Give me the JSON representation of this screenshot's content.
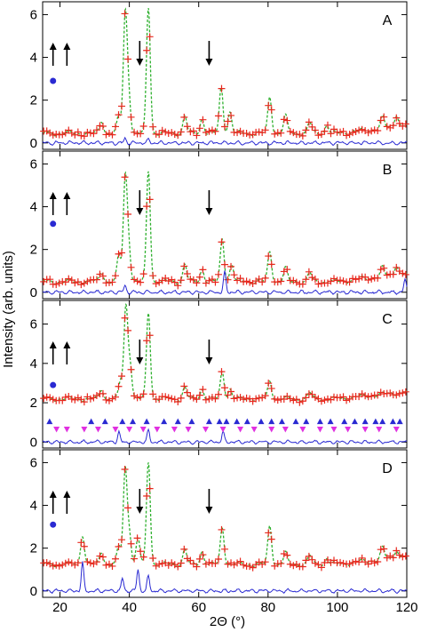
{
  "chart_data": {
    "type": "line",
    "xlabel": "2Θ (°)",
    "ylabel": "Intensity (arb. units)",
    "xlim": [
      15,
      120
    ],
    "x_ticks": [
      "20",
      "40",
      "60",
      "80",
      "100",
      "120"
    ],
    "y_ticks": [
      "0",
      "2",
      "4",
      "6"
    ],
    "legend": "none",
    "colors": {
      "observed": "#e8281e",
      "calculated": "#2fb02f",
      "difference": "#2a2ad2",
      "blue_markers": "#2a2ad2",
      "magenta_markers": "#e030e0",
      "arrows": "#000000"
    },
    "panels": [
      {
        "label": "A",
        "ylim": [
          -0.3,
          6.6
        ],
        "baseline": 0.45,
        "offset": 0.0,
        "peaks": [
          {
            "x": 32.0,
            "h": 0.6
          },
          {
            "x": 37.0,
            "h": 0.8
          },
          {
            "x": 38.8,
            "h": 5.4
          },
          {
            "x": 39.8,
            "h": 1.8
          },
          {
            "x": 45.5,
            "h": 5.9
          },
          {
            "x": 56.0,
            "h": 0.8
          },
          {
            "x": 61.0,
            "h": 0.7
          },
          {
            "x": 66.5,
            "h": 2.1
          },
          {
            "x": 69.0,
            "h": 1.0
          },
          {
            "x": 80.5,
            "h": 1.7
          },
          {
            "x": 85.0,
            "h": 0.8
          },
          {
            "x": 92.0,
            "h": 0.5
          },
          {
            "x": 97.0,
            "h": 0.4
          },
          {
            "x": 113.0,
            "h": 0.5
          },
          {
            "x": 117.0,
            "h": 0.6
          }
        ],
        "diff_spikes": [
          {
            "x": 38.8,
            "h": 0.2
          },
          {
            "x": 45.5,
            "h": 0.15
          }
        ],
        "down_arrows_x": [
          43,
          63
        ],
        "up_arrows_x": [
          18,
          22
        ],
        "dot": {
          "x": 18,
          "y": 2.9
        }
      },
      {
        "label": "B",
        "ylim": [
          -0.3,
          6.6
        ],
        "baseline": 0.5,
        "offset": 0.0,
        "peaks": [
          {
            "x": 32.0,
            "h": 0.5
          },
          {
            "x": 37.0,
            "h": 1.2
          },
          {
            "x": 38.8,
            "h": 4.7
          },
          {
            "x": 39.8,
            "h": 1.7
          },
          {
            "x": 45.5,
            "h": 5.2
          },
          {
            "x": 56.0,
            "h": 0.8
          },
          {
            "x": 61.0,
            "h": 0.6
          },
          {
            "x": 66.8,
            "h": 2.0
          },
          {
            "x": 69.5,
            "h": 0.8
          },
          {
            "x": 80.5,
            "h": 1.4
          },
          {
            "x": 85.0,
            "h": 0.6
          },
          {
            "x": 92.0,
            "h": 0.4
          },
          {
            "x": 113.0,
            "h": 0.4
          },
          {
            "x": 117.0,
            "h": 0.5
          }
        ],
        "diff_spikes": [
          {
            "x": 38.8,
            "h": 0.3
          },
          {
            "x": 67.5,
            "h": 0.9
          },
          {
            "x": 119.5,
            "h": 0.6
          }
        ],
        "down_arrows_x": [
          43,
          63
        ],
        "up_arrows_x": [
          18,
          22
        ],
        "dot": {
          "x": 18,
          "y": 3.2
        }
      },
      {
        "label": "C",
        "ylim": [
          -0.3,
          7.2
        ],
        "baseline": 2.2,
        "offset": 0.0,
        "peaks": [
          {
            "x": 32.0,
            "h": 0.5
          },
          {
            "x": 37.5,
            "h": 0.9
          },
          {
            "x": 39.0,
            "h": 4.6
          },
          {
            "x": 40.2,
            "h": 1.8
          },
          {
            "x": 45.5,
            "h": 4.4
          },
          {
            "x": 56.0,
            "h": 0.6
          },
          {
            "x": 61.0,
            "h": 0.5
          },
          {
            "x": 66.8,
            "h": 1.4
          },
          {
            "x": 69.0,
            "h": 0.5
          },
          {
            "x": 80.5,
            "h": 0.9
          },
          {
            "x": 92.0,
            "h": 0.3
          }
        ],
        "diff_spikes": [
          {
            "x": 37.0,
            "h": 0.5
          },
          {
            "x": 45.5,
            "h": 0.6
          },
          {
            "x": 67.0,
            "h": 0.5
          }
        ],
        "down_arrows_x": [
          43,
          63
        ],
        "up_arrows_x": [
          18,
          22
        ],
        "dot": {
          "x": 18,
          "y": 2.9
        },
        "tick_rows": [
          {
            "marker": "triangle-up",
            "y": 1.05,
            "color": "blue",
            "x": [
              17,
              29,
              33,
              38,
              41,
              45,
              50,
              54,
              58,
              63,
              66,
              68,
              71,
              74,
              78,
              81,
              84,
              88,
              91,
              95,
              98,
              102,
              105,
              108,
              111,
              113,
              116,
              118
            ]
          },
          {
            "marker": "triangle-down",
            "y": 0.65,
            "color": "magenta",
            "x": [
              19,
              22,
              27,
              31,
              36,
              40,
              44,
              48,
              53,
              57,
              62,
              67,
              72,
              76,
              81,
              85,
              90,
              95,
              99,
              103,
              108,
              112,
              117
            ]
          }
        ]
      },
      {
        "label": "D",
        "ylim": [
          -0.3,
          6.6
        ],
        "baseline": 1.25,
        "offset": 0.0,
        "peaks": [
          {
            "x": 26.5,
            "h": 1.4
          },
          {
            "x": 32.0,
            "h": 0.6
          },
          {
            "x": 37.0,
            "h": 0.8
          },
          {
            "x": 38.8,
            "h": 4.4
          },
          {
            "x": 40.0,
            "h": 1.5
          },
          {
            "x": 42.5,
            "h": 1.2
          },
          {
            "x": 45.5,
            "h": 4.8
          },
          {
            "x": 56.0,
            "h": 0.7
          },
          {
            "x": 61.0,
            "h": 0.6
          },
          {
            "x": 66.8,
            "h": 1.7
          },
          {
            "x": 80.5,
            "h": 1.8
          },
          {
            "x": 85.0,
            "h": 0.5
          },
          {
            "x": 92.0,
            "h": 0.4
          },
          {
            "x": 97.0,
            "h": 0.3
          },
          {
            "x": 113.0,
            "h": 0.5
          },
          {
            "x": 117.0,
            "h": 0.4
          }
        ],
        "diff_spikes": [
          {
            "x": 26.5,
            "h": 1.3
          },
          {
            "x": 38.0,
            "h": 0.6
          },
          {
            "x": 42.5,
            "h": 1.0
          },
          {
            "x": 45.5,
            "h": 0.7
          }
        ],
        "down_arrows_x": [
          43,
          63
        ],
        "up_arrows_x": [
          18,
          22
        ],
        "dot": {
          "x": 18,
          "y": 3.1
        }
      }
    ]
  }
}
